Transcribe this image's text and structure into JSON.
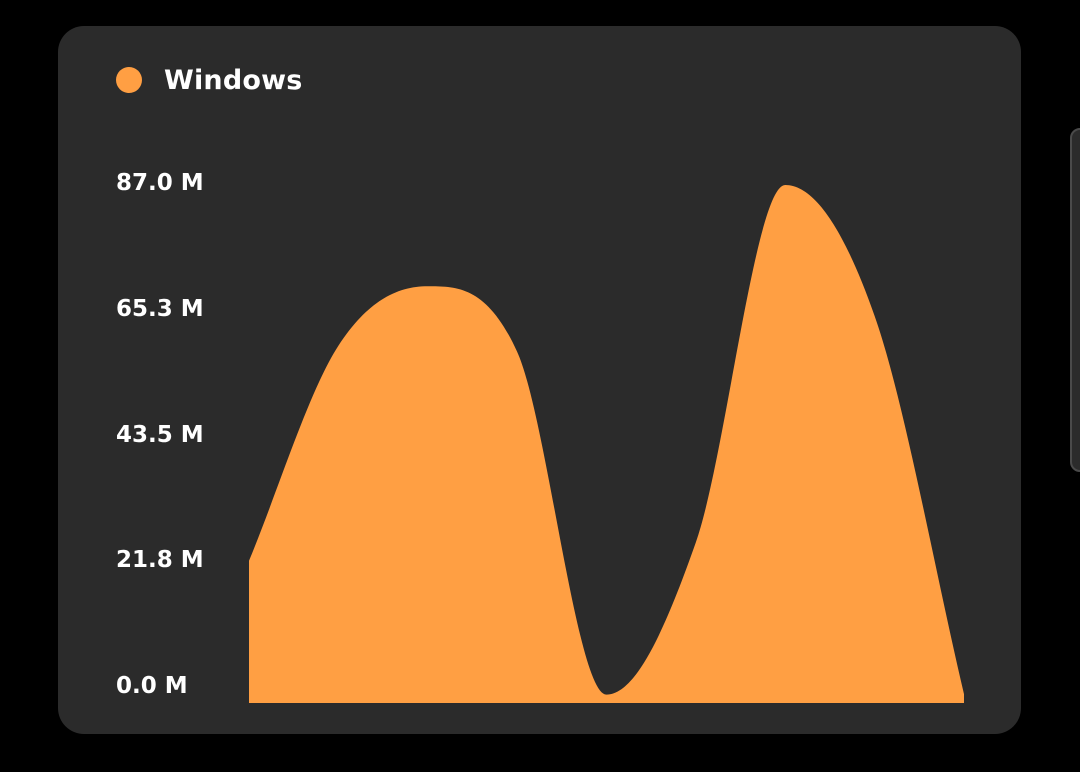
{
  "chart_data": {
    "type": "area",
    "series": [
      {
        "name": "Windows",
        "color": "#ff9f43",
        "points": [
          [
            0,
            23.9
          ],
          [
            0.5,
            60
          ],
          [
            1,
            70
          ],
          [
            1.5,
            59
          ],
          [
            2,
            1.4
          ],
          [
            2.5,
            27
          ],
          [
            3,
            87
          ],
          [
            3.5,
            65
          ],
          [
            4,
            1.5
          ]
        ]
      }
    ],
    "y_ticks": [
      "87.0 M",
      "65.3 M",
      "43.5 M",
      "21.8 M",
      "0.0 M"
    ],
    "y_tick_values": [
      87.0,
      65.3,
      43.5,
      21.8,
      0.0
    ],
    "ylim": [
      0,
      87.0
    ],
    "xlim": [
      0,
      4
    ],
    "legend": "top-left",
    "grid": false,
    "colors": {
      "background": "#000000",
      "card": "#2b2b2b",
      "text": "#ffffff"
    }
  }
}
